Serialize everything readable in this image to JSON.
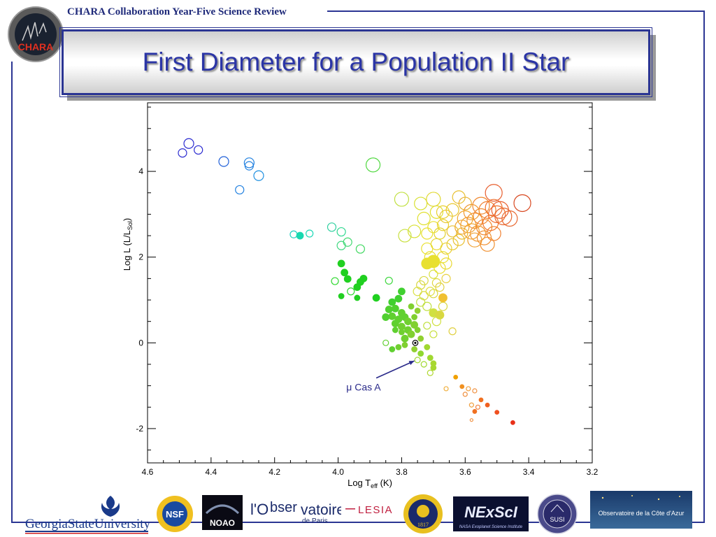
{
  "header": {
    "text": "CHARA Collaboration Year-Five Science Review"
  },
  "logo": {
    "text": "CHARA"
  },
  "title": "First Diameter for a Population II Star",
  "chart_data": {
    "type": "scatter",
    "xlabel_main": "Log T",
    "xlabel_sub": "eff",
    "xlabel_tail": " (K)",
    "ylabel_main": "Log L (L/L",
    "ylabel_sub": "Sol",
    "ylabel_tail": ")",
    "xlim": [
      4.6,
      3.2
    ],
    "ylim": [
      -2.8,
      5.6
    ],
    "x_reversed": true,
    "xticks": [
      4.6,
      4.4,
      4.2,
      4.0,
      3.8,
      3.6,
      3.4,
      3.2
    ],
    "xtick_labels": [
      "4.6",
      "4.4",
      "4.2",
      "4.0",
      "3.8",
      "3.6",
      "3.4",
      "3.2"
    ],
    "yticks": [
      -2,
      0,
      2,
      4
    ],
    "ytick_labels": [
      "-2",
      "0",
      "2",
      "4"
    ],
    "annotation": {
      "text": "μ Cas A",
      "target": [
        3.757,
        0.0
      ],
      "label_pos": [
        3.92,
        -1.05
      ]
    },
    "highlight": {
      "x": 3.757,
      "y": 0.0
    },
    "points": [
      [
        4.47,
        4.65,
        "#2a2ad0",
        0,
        7
      ],
      [
        4.49,
        4.43,
        "#2a2ad0",
        0,
        6
      ],
      [
        4.44,
        4.5,
        "#2a2ad0",
        0,
        6
      ],
      [
        4.36,
        4.23,
        "#2060d8",
        0,
        7
      ],
      [
        4.28,
        4.2,
        "#2080e0",
        0,
        7
      ],
      [
        4.28,
        4.13,
        "#2080e0",
        0,
        6
      ],
      [
        4.25,
        3.9,
        "#2090e0",
        0,
        7
      ],
      [
        4.31,
        3.57,
        "#2080e0",
        0,
        6
      ],
      [
        4.14,
        2.53,
        "#20d0c0",
        0,
        5
      ],
      [
        4.12,
        2.5,
        "#18d8b0",
        1,
        5
      ],
      [
        4.09,
        2.55,
        "#20d8b8",
        0,
        5
      ],
      [
        4.02,
        2.7,
        "#30d0a0",
        0,
        6
      ],
      [
        3.99,
        2.59,
        "#30d890",
        0,
        6
      ],
      [
        3.99,
        2.27,
        "#40d880",
        0,
        6
      ],
      [
        3.97,
        2.35,
        "#40d870",
        0,
        6
      ],
      [
        3.93,
        2.19,
        "#40d860",
        0,
        6
      ],
      [
        3.89,
        4.15,
        "#50d840",
        0,
        10
      ],
      [
        3.99,
        1.85,
        "#20d020",
        1,
        5
      ],
      [
        3.98,
        1.64,
        "#20d020",
        1,
        5
      ],
      [
        3.97,
        1.49,
        "#20d020",
        1,
        5
      ],
      [
        3.93,
        1.42,
        "#20d020",
        1,
        5
      ],
      [
        3.92,
        1.5,
        "#20d020",
        1,
        5
      ],
      [
        3.96,
        1.2,
        "#30d830",
        0,
        5
      ],
      [
        3.99,
        1.09,
        "#20d020",
        1,
        4
      ],
      [
        3.94,
        1.3,
        "#20d020",
        1,
        5
      ],
      [
        3.94,
        1.05,
        "#20d020",
        1,
        4
      ],
      [
        4.01,
        1.44,
        "#30d830",
        0,
        5
      ],
      [
        3.88,
        1.05,
        "#20d020",
        1,
        5
      ],
      [
        3.84,
        1.45,
        "#40d840",
        0,
        5
      ],
      [
        3.83,
        0.95,
        "#40d030",
        1,
        5
      ],
      [
        3.81,
        1.03,
        "#40d030",
        1,
        5
      ],
      [
        3.8,
        1.2,
        "#40d030",
        1,
        5
      ],
      [
        3.84,
        0.78,
        "#50d030",
        1,
        5
      ],
      [
        3.82,
        0.8,
        "#50d030",
        1,
        5
      ],
      [
        3.8,
        0.7,
        "#60d030",
        1,
        5
      ],
      [
        3.83,
        0.62,
        "#60d030",
        1,
        5
      ],
      [
        3.81,
        0.55,
        "#60d030",
        1,
        5
      ],
      [
        3.79,
        0.6,
        "#60d030",
        1,
        5
      ],
      [
        3.78,
        0.5,
        "#70d030",
        1,
        5
      ],
      [
        3.82,
        0.45,
        "#60d030",
        1,
        5
      ],
      [
        3.8,
        0.38,
        "#70d030",
        1,
        5
      ],
      [
        3.78,
        0.3,
        "#70d030",
        1,
        5
      ],
      [
        3.76,
        0.42,
        "#80d030",
        1,
        5
      ],
      [
        3.77,
        0.2,
        "#80d030",
        1,
        5
      ],
      [
        3.79,
        0.1,
        "#70d030",
        1,
        5
      ],
      [
        3.75,
        0.3,
        "#80d030",
        1,
        4
      ],
      [
        3.74,
        0.1,
        "#90d030",
        1,
        4
      ],
      [
        3.8,
        0.25,
        "#70d030",
        1,
        4
      ],
      [
        3.82,
        0.3,
        "#60d030",
        1,
        4
      ],
      [
        3.85,
        0.6,
        "#50d030",
        1,
        5
      ],
      [
        3.77,
        0.85,
        "#80d030",
        1,
        4
      ],
      [
        3.76,
        0.6,
        "#80d030",
        1,
        4
      ],
      [
        3.75,
        0.75,
        "#90d030",
        1,
        4
      ],
      [
        3.81,
        -0.1,
        "#70d030",
        1,
        4
      ],
      [
        3.79,
        -0.05,
        "#80d030",
        1,
        4
      ],
      [
        3.76,
        -0.15,
        "#90d030",
        1,
        4
      ],
      [
        3.74,
        -0.25,
        "#90d830",
        1,
        4
      ],
      [
        3.72,
        -0.1,
        "#a0d830",
        1,
        4
      ],
      [
        3.71,
        -0.35,
        "#a0d830",
        1,
        4
      ],
      [
        3.7,
        -0.48,
        "#a8d830",
        1,
        4
      ],
      [
        3.7,
        -0.58,
        "#a8d830",
        1,
        4
      ],
      [
        3.73,
        -0.5,
        "#a0d830",
        0,
        4
      ],
      [
        3.71,
        -0.7,
        "#b0d830",
        0,
        4
      ],
      [
        3.75,
        -0.4,
        "#a0d830",
        0,
        4
      ],
      [
        3.83,
        -0.15,
        "#60d030",
        1,
        4
      ],
      [
        3.85,
        0.0,
        "#60d030",
        0,
        4
      ],
      [
        3.74,
        0.95,
        "#c0e040",
        0,
        6
      ],
      [
        3.72,
        0.85,
        "#c0e040",
        0,
        6
      ],
      [
        3.7,
        0.7,
        "#d0e040",
        1,
        6
      ],
      [
        3.68,
        0.65,
        "#d8d840",
        1,
        6
      ],
      [
        3.67,
        0.85,
        "#d8d840",
        0,
        6
      ],
      [
        3.69,
        0.5,
        "#d0e040",
        0,
        6
      ],
      [
        3.72,
        0.4,
        "#c0e040",
        0,
        5
      ],
      [
        3.7,
        0.2,
        "#c8e040",
        0,
        5
      ],
      [
        3.64,
        0.27,
        "#e0d040",
        0,
        5
      ],
      [
        3.67,
        1.05,
        "#f0c030",
        1,
        6
      ],
      [
        3.7,
        1.15,
        "#d8d840",
        0,
        6
      ],
      [
        3.68,
        1.3,
        "#e0d040",
        0,
        6
      ],
      [
        3.73,
        1.45,
        "#d8d840",
        0,
        6
      ],
      [
        3.7,
        1.6,
        "#d8e040",
        0,
        6
      ],
      [
        3.72,
        1.85,
        "#e8e030",
        1,
        8
      ],
      [
        3.7,
        1.9,
        "#e8e030",
        1,
        9
      ],
      [
        3.68,
        1.75,
        "#e8e030",
        0,
        8
      ],
      [
        3.71,
        2.0,
        "#e8e030",
        0,
        8
      ],
      [
        3.67,
        2.0,
        "#e8e030",
        0,
        8
      ],
      [
        3.72,
        2.2,
        "#e8e030",
        0,
        8
      ],
      [
        3.69,
        2.3,
        "#e8d830",
        0,
        8
      ],
      [
        3.66,
        1.85,
        "#e8d830",
        0,
        8
      ],
      [
        3.66,
        2.2,
        "#e8d030",
        0,
        8
      ],
      [
        3.64,
        2.3,
        "#e8c830",
        0,
        8
      ],
      [
        3.62,
        2.4,
        "#e8c030",
        0,
        8
      ],
      [
        3.68,
        2.55,
        "#e0d030",
        0,
        8
      ],
      [
        3.7,
        2.7,
        "#e8e030",
        0,
        8
      ],
      [
        3.67,
        2.75,
        "#e8d030",
        0,
        8
      ],
      [
        3.64,
        2.6,
        "#e8c030",
        0,
        8
      ],
      [
        3.61,
        2.55,
        "#e8b830",
        0,
        8
      ],
      [
        3.69,
        3.05,
        "#e0e030",
        0,
        9
      ],
      [
        3.64,
        3.1,
        "#e8c830",
        0,
        9
      ],
      [
        3.62,
        3.4,
        "#e8c030",
        0,
        9
      ],
      [
        3.6,
        3.25,
        "#e8b030",
        0,
        9
      ],
      [
        3.66,
        2.95,
        "#e8c830",
        0,
        9
      ],
      [
        3.72,
        2.55,
        "#e8e030",
        0,
        8
      ],
      [
        3.76,
        2.6,
        "#d8e030",
        0,
        9
      ],
      [
        3.79,
        2.5,
        "#c8e040",
        0,
        9
      ],
      [
        3.73,
        2.9,
        "#e0e030",
        0,
        9
      ],
      [
        3.74,
        3.25,
        "#d8e030",
        0,
        9
      ],
      [
        3.7,
        3.35,
        "#e0d830",
        0,
        10
      ],
      [
        3.67,
        3.05,
        "#e8d030",
        0,
        9
      ],
      [
        3.75,
        1.2,
        "#d8e040",
        0,
        6
      ],
      [
        3.74,
        1.35,
        "#d8d840",
        0,
        6
      ],
      [
        3.73,
        1.1,
        "#d8d840",
        0,
        6
      ],
      [
        3.71,
        1.2,
        "#e0e040",
        0,
        6
      ],
      [
        3.69,
        1.4,
        "#e0d840",
        0,
        6
      ],
      [
        3.66,
        1.5,
        "#e8d040",
        0,
        6
      ],
      [
        3.8,
        3.35,
        "#c0e040",
        0,
        10
      ],
      [
        3.59,
        2.75,
        "#f0a030",
        0,
        11
      ],
      [
        3.57,
        2.85,
        "#f09030",
        0,
        11
      ],
      [
        3.55,
        2.95,
        "#f08830",
        0,
        11
      ],
      [
        3.58,
        2.6,
        "#f0a030",
        0,
        11
      ],
      [
        3.56,
        2.55,
        "#f09830",
        0,
        11
      ],
      [
        3.54,
        2.7,
        "#f08830",
        0,
        11
      ],
      [
        3.52,
        2.8,
        "#f07830",
        0,
        11
      ],
      [
        3.53,
        3.1,
        "#f08030",
        0,
        12
      ],
      [
        3.51,
        3.15,
        "#f07030",
        0,
        12
      ],
      [
        3.5,
        3.0,
        "#f07030",
        0,
        12
      ],
      [
        3.48,
        2.95,
        "#e86830",
        0,
        12
      ],
      [
        3.55,
        3.2,
        "#f08830",
        0,
        12
      ],
      [
        3.58,
        3.05,
        "#f09830",
        0,
        11
      ],
      [
        3.6,
        2.9,
        "#f0a830",
        0,
        11
      ],
      [
        3.61,
        2.7,
        "#f0a830",
        0,
        10
      ],
      [
        3.57,
        2.4,
        "#f0a030",
        0,
        10
      ],
      [
        3.54,
        2.45,
        "#f09030",
        0,
        10
      ],
      [
        3.51,
        2.55,
        "#f08030",
        0,
        10
      ],
      [
        3.49,
        3.1,
        "#e86030",
        0,
        12
      ],
      [
        3.51,
        3.5,
        "#e86030",
        0,
        12
      ],
      [
        3.42,
        3.26,
        "#d84820",
        0,
        12
      ],
      [
        3.46,
        2.9,
        "#e86830",
        0,
        11
      ],
      [
        3.53,
        2.3,
        "#f09030",
        0,
        10
      ],
      [
        3.63,
        -0.8,
        "#f0a000",
        1,
        3
      ],
      [
        3.61,
        -1.02,
        "#f09020",
        1,
        3
      ],
      [
        3.59,
        -1.07,
        "#f0a040",
        0,
        3
      ],
      [
        3.57,
        -1.12,
        "#f09040",
        0,
        3
      ],
      [
        3.55,
        -1.33,
        "#f07020",
        1,
        3
      ],
      [
        3.53,
        -1.45,
        "#f06020",
        1,
        3
      ],
      [
        3.5,
        -1.62,
        "#f05020",
        1,
        3
      ],
      [
        3.56,
        -1.5,
        "#f08040",
        0,
        3
      ],
      [
        3.58,
        -1.45,
        "#f0a040",
        0,
        3
      ],
      [
        3.57,
        -1.6,
        "#f07020",
        1,
        3
      ],
      [
        3.58,
        -1.8,
        "#f09040",
        0,
        2
      ],
      [
        3.45,
        -1.86,
        "#e83018",
        1,
        3
      ],
      [
        3.66,
        -1.07,
        "#f0b040",
        0,
        3
      ],
      [
        3.6,
        -1.2,
        "#f09040",
        0,
        3
      ]
    ]
  },
  "footer": {
    "gsu": "GeorgiaStateUniversity",
    "nsf": "NSF",
    "noao": "NOAO",
    "obs_l": "l'O",
    "obs_mid": "bser",
    "obs_end": "vatoire",
    "obs_sub": "de Paris",
    "lesia": "LESIA",
    "michigan": "1817",
    "nexsci": "NExScI",
    "nexsci_sub": "NASA Exoplanet Science Institute",
    "susi": "SUSI",
    "oca": "Observatoire de la Côte d'Azur"
  },
  "colors": {
    "frame": "#2b3593",
    "title": "#2b35a6"
  }
}
